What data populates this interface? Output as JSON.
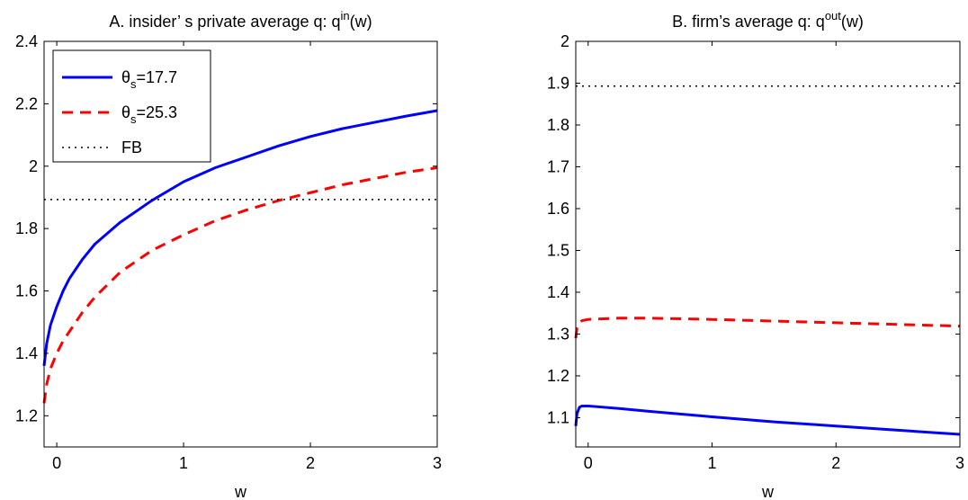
{
  "chart_data": [
    {
      "type": "line",
      "title": {
        "main": "A. insider’ s private average q: q",
        "sup": "in",
        "tail": "(w)"
      },
      "xlabel": "w",
      "ylabel": "",
      "xlim": [
        -0.1,
        3
      ],
      "ylim": [
        1.1,
        2.4
      ],
      "xticks": [
        0,
        1,
        2,
        3
      ],
      "yticks": [
        1.2,
        1.4,
        1.6,
        1.8,
        2,
        2.2,
        2.4
      ],
      "ytick_labels": [
        "1.2",
        "1.4",
        "1.6",
        "1.8",
        "2",
        "2.2",
        "2.4"
      ],
      "xtick_labels": [
        "0",
        "1",
        "2",
        "3"
      ],
      "grid": false,
      "legend_placement": "top-left",
      "legend": [
        {
          "symbol": "θ",
          "sub": "s",
          "text": "=17.7",
          "series": 0
        },
        {
          "symbol": "θ",
          "sub": "s",
          "text": "=25.3",
          "series": 1
        },
        {
          "symbol": "",
          "sub": "",
          "text": "FB",
          "series": 2
        }
      ],
      "series": [
        {
          "color": "#0000ff",
          "style": "solid",
          "x": [
            -0.1,
            -0.08,
            -0.05,
            0,
            0.05,
            0.1,
            0.2,
            0.3,
            0.5,
            0.75,
            1,
            1.25,
            1.5,
            1.75,
            2,
            2.25,
            2.5,
            2.75,
            3
          ],
          "y": [
            1.36,
            1.43,
            1.49,
            1.55,
            1.6,
            1.64,
            1.7,
            1.75,
            1.82,
            1.89,
            1.95,
            1.995,
            2.03,
            2.065,
            2.095,
            2.12,
            2.14,
            2.16,
            2.178
          ]
        },
        {
          "color": "#ff0000",
          "style": "dashed",
          "x": [
            -0.1,
            -0.08,
            -0.05,
            0,
            0.05,
            0.1,
            0.2,
            0.3,
            0.5,
            0.75,
            1,
            1.25,
            1.5,
            1.75,
            2,
            2.25,
            2.5,
            2.75,
            3
          ],
          "y": [
            1.24,
            1.3,
            1.35,
            1.4,
            1.44,
            1.47,
            1.53,
            1.58,
            1.66,
            1.73,
            1.78,
            1.825,
            1.86,
            1.89,
            1.915,
            1.94,
            1.96,
            1.98,
            1.995
          ]
        },
        {
          "color": "#000000",
          "style": "dotted",
          "x": [
            -0.1,
            3
          ],
          "y": [
            1.893,
            1.893
          ]
        }
      ]
    },
    {
      "type": "line",
      "title": {
        "main": "B. firm’s average q: q",
        "sup": "out",
        "tail": "(w)"
      },
      "xlabel": "w",
      "ylabel": "",
      "xlim": [
        -0.1,
        3
      ],
      "ylim": [
        1.03,
        2
      ],
      "xticks": [
        0,
        1,
        2,
        3
      ],
      "yticks": [
        1.1,
        1.2,
        1.3,
        1.4,
        1.5,
        1.6,
        1.7,
        1.8,
        1.9,
        2
      ],
      "ytick_labels": [
        "1.1",
        "1.2",
        "1.3",
        "1.4",
        "1.5",
        "1.6",
        "1.7",
        "1.8",
        "1.9",
        "2"
      ],
      "xtick_labels": [
        "0",
        "1",
        "2",
        "3"
      ],
      "grid": false,
      "series": [
        {
          "color": "#0000ff",
          "style": "solid",
          "x": [
            -0.1,
            -0.09,
            -0.07,
            -0.05,
            0,
            0.25,
            0.5,
            1,
            1.5,
            2,
            2.5,
            3
          ],
          "y": [
            1.08,
            1.11,
            1.125,
            1.128,
            1.128,
            1.122,
            1.115,
            1.102,
            1.09,
            1.08,
            1.07,
            1.06
          ]
        },
        {
          "color": "#ff0000",
          "style": "dashed",
          "x": [
            -0.1,
            -0.09,
            -0.07,
            -0.05,
            0,
            0.25,
            0.5,
            1,
            1.5,
            2,
            2.5,
            3
          ],
          "y": [
            1.29,
            1.315,
            1.328,
            1.332,
            1.335,
            1.338,
            1.338,
            1.335,
            1.331,
            1.327,
            1.323,
            1.319
          ]
        },
        {
          "color": "#000000",
          "style": "dotted",
          "x": [
            -0.1,
            3
          ],
          "y": [
            1.893,
            1.893
          ]
        }
      ]
    }
  ]
}
